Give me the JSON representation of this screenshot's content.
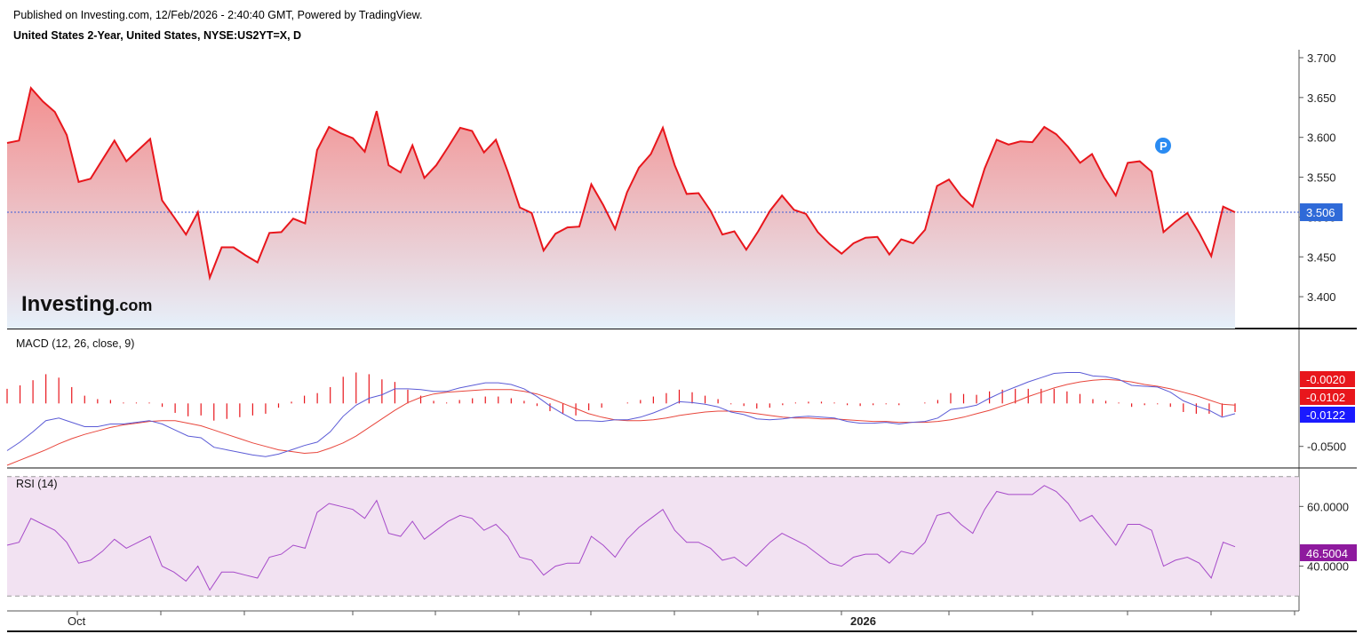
{
  "header": {
    "published": "Published on Investing.com, 12/Feb/2026 - 2:40:40 GMT, Powered by TradingView.",
    "symbol": "United States 2-Year, United States, NYSE:US2YT=X, D"
  },
  "logo": {
    "main": "Investing",
    "sub": ".com"
  },
  "x_axis": {
    "labels": [
      "Oct",
      "2026"
    ]
  },
  "colors": {
    "price_line": "#e8161c",
    "price_fill_top": "#f28a8a",
    "price_fill_bottom": "#e6f0fa",
    "last_price_line": "#3a5bd9",
    "last_price_badge": "#2f6ad8",
    "macd_line": "#5b5bd6",
    "signal_line": "#e8463c",
    "histogram": "#e8161c",
    "macd_badge_hist": "#e8161c",
    "macd_badge_macd": "#1a1aff",
    "rsi_line": "#a64ac9",
    "rsi_band": "#f2e2f2",
    "rsi_badge": "#8e1a9e",
    "pivot_marker": "#2a8bf2"
  },
  "chart_data": [
    {
      "type": "area",
      "name": "price",
      "ylim": [
        3.36,
        3.71
      ],
      "yticks": [
        "3.700",
        "3.650",
        "3.600",
        "3.550",
        "3.500",
        "3.450",
        "3.400"
      ],
      "last_value": "3.506",
      "marker": "P",
      "values": [
        3.593,
        3.596,
        3.662,
        3.645,
        3.632,
        3.603,
        3.544,
        3.548,
        3.572,
        3.596,
        3.57,
        3.584,
        3.598,
        3.521,
        3.5,
        3.478,
        3.506,
        3.424,
        3.462,
        3.462,
        3.452,
        3.443,
        3.48,
        3.481,
        3.498,
        3.492,
        3.584,
        3.613,
        3.605,
        3.599,
        3.582,
        3.633,
        3.565,
        3.556,
        3.59,
        3.549,
        3.565,
        3.588,
        3.612,
        3.608,
        3.581,
        3.597,
        3.557,
        3.512,
        3.505,
        3.458,
        3.479,
        3.487,
        3.488,
        3.541,
        3.515,
        3.485,
        3.531,
        3.562,
        3.579,
        3.612,
        3.565,
        3.529,
        3.53,
        3.508,
        3.478,
        3.482,
        3.459,
        3.482,
        3.508,
        3.527,
        3.509,
        3.504,
        3.481,
        3.466,
        3.454,
        3.467,
        3.474,
        3.475,
        3.453,
        3.472,
        3.467,
        3.484,
        3.539,
        3.547,
        3.527,
        3.513,
        3.561,
        3.597,
        3.591,
        3.595,
        3.594,
        3.613,
        3.604,
        3.588,
        3.568,
        3.579,
        3.55,
        3.527,
        3.568,
        3.57,
        3.557,
        3.481,
        3.494,
        3.505,
        3.48,
        3.451,
        3.513,
        3.506
      ]
    },
    {
      "type": "line",
      "name": "MACD (12, 26, close, 9)",
      "ylim": [
        -0.072,
        0.083
      ],
      "yticks": [
        "-0.0500"
      ],
      "badges": [
        "-0.0020",
        "-0.0102",
        "-0.0122"
      ],
      "series": [
        {
          "name": "macd",
          "values": [
            -0.055,
            -0.045,
            -0.033,
            -0.02,
            -0.017,
            -0.022,
            -0.027,
            -0.027,
            -0.024,
            -0.024,
            -0.022,
            -0.02,
            -0.024,
            -0.031,
            -0.038,
            -0.04,
            -0.051,
            -0.054,
            -0.057,
            -0.06,
            -0.062,
            -0.059,
            -0.054,
            -0.049,
            -0.045,
            -0.033,
            -0.015,
            -0.002,
            0.006,
            0.01,
            0.017,
            0.017,
            0.016,
            0.014,
            0.014,
            0.018,
            0.021,
            0.024,
            0.024,
            0.022,
            0.017,
            0.008,
            -0.003,
            -0.012,
            -0.02,
            -0.02,
            -0.021,
            -0.019,
            -0.019,
            -0.016,
            -0.011,
            -0.005,
            0.002,
            0.001,
            -0.001,
            -0.004,
            -0.01,
            -0.013,
            -0.018,
            -0.019,
            -0.018,
            -0.016,
            -0.015,
            -0.016,
            -0.017,
            -0.021,
            -0.023,
            -0.023,
            -0.022,
            -0.024,
            -0.022,
            -0.021,
            -0.017,
            -0.007,
            -0.005,
            -0.002,
            0.006,
            0.013,
            0.019,
            0.025,
            0.03,
            0.035,
            0.036,
            0.036,
            0.032,
            0.031,
            0.028,
            0.021,
            0.02,
            0.019,
            0.013,
            0.003,
            -0.003,
            -0.008,
            -0.016,
            -0.012
          ]
        },
        {
          "name": "signal",
          "values": [
            -0.072,
            -0.066,
            -0.06,
            -0.054,
            -0.047,
            -0.041,
            -0.036,
            -0.032,
            -0.028,
            -0.025,
            -0.023,
            -0.021,
            -0.02,
            -0.02,
            -0.023,
            -0.026,
            -0.031,
            -0.036,
            -0.041,
            -0.046,
            -0.05,
            -0.054,
            -0.056,
            -0.058,
            -0.057,
            -0.052,
            -0.046,
            -0.038,
            -0.028,
            -0.018,
            -0.008,
            0.001,
            0.007,
            0.011,
            0.013,
            0.014,
            0.015,
            0.016,
            0.016,
            0.016,
            0.014,
            0.011,
            0.006,
            0.0,
            -0.006,
            -0.012,
            -0.016,
            -0.019,
            -0.02,
            -0.02,
            -0.019,
            -0.017,
            -0.014,
            -0.012,
            -0.01,
            -0.009,
            -0.009,
            -0.01,
            -0.012,
            -0.014,
            -0.016,
            -0.017,
            -0.017,
            -0.018,
            -0.018,
            -0.019,
            -0.02,
            -0.021,
            -0.021,
            -0.022,
            -0.022,
            -0.022,
            -0.021,
            -0.019,
            -0.016,
            -0.012,
            -0.008,
            -0.003,
            0.002,
            0.008,
            0.013,
            0.018,
            0.022,
            0.025,
            0.027,
            0.028,
            0.027,
            0.025,
            0.022,
            0.02,
            0.017,
            0.013,
            0.009,
            0.004,
            -0.001,
            -0.002
          ]
        }
      ],
      "histogram": [
        0.017,
        0.021,
        0.027,
        0.034,
        0.03,
        0.019,
        0.009,
        0.005,
        0.004,
        0.001,
        0.001,
        0.001,
        -0.004,
        -0.011,
        -0.015,
        -0.014,
        -0.02,
        -0.018,
        -0.016,
        -0.014,
        -0.012,
        -0.005,
        0.002,
        0.009,
        0.012,
        0.019,
        0.031,
        0.036,
        0.034,
        0.028,
        0.025,
        0.016,
        0.009,
        0.003,
        0.001,
        0.004,
        0.006,
        0.008,
        0.008,
        0.006,
        0.003,
        -0.003,
        -0.009,
        -0.012,
        -0.014,
        -0.008,
        -0.005,
        0.0,
        0.001,
        0.004,
        0.008,
        0.012,
        0.016,
        0.013,
        0.009,
        0.005,
        -0.001,
        -0.003,
        -0.006,
        -0.005,
        -0.002,
        0.001,
        0.002,
        0.002,
        0.001,
        -0.002,
        -0.003,
        -0.002,
        -0.001,
        -0.002,
        0.0,
        0.001,
        0.004,
        0.012,
        0.011,
        0.01,
        0.014,
        0.016,
        0.017,
        0.017,
        0.017,
        0.017,
        0.014,
        0.011,
        0.005,
        0.003,
        0.001,
        -0.004,
        -0.002,
        -0.001,
        -0.004,
        -0.01,
        -0.012,
        -0.012,
        -0.015,
        -0.01
      ]
    },
    {
      "type": "line",
      "name": "RSI (14)",
      "ylim": [
        25,
        72
      ],
      "yticks": [
        "60.0000",
        "40.0000"
      ],
      "band": [
        30,
        70
      ],
      "last_value": "46.5004",
      "values": [
        47,
        48,
        56,
        54,
        52,
        48,
        41,
        42,
        45,
        49,
        46,
        48,
        50,
        40,
        38,
        35,
        40,
        32,
        38,
        38,
        37,
        36,
        43,
        44,
        47,
        46,
        58,
        61,
        60,
        59,
        56,
        62,
        51,
        50,
        55,
        49,
        52,
        55,
        57,
        56,
        52,
        54,
        50,
        43,
        42,
        37,
        40,
        41,
        41,
        50,
        47,
        43,
        49,
        53,
        56,
        59,
        52,
        48,
        48,
        46,
        42,
        43,
        40,
        44,
        48,
        51,
        49,
        47,
        44,
        41,
        40,
        43,
        44,
        44,
        41,
        45,
        44,
        48,
        57,
        58,
        54,
        51,
        59,
        65,
        64,
        64,
        64,
        67,
        65,
        61,
        55,
        57,
        52,
        47,
        54,
        54,
        52,
        40,
        42,
        43,
        41,
        36,
        48,
        46.5
      ]
    }
  ]
}
